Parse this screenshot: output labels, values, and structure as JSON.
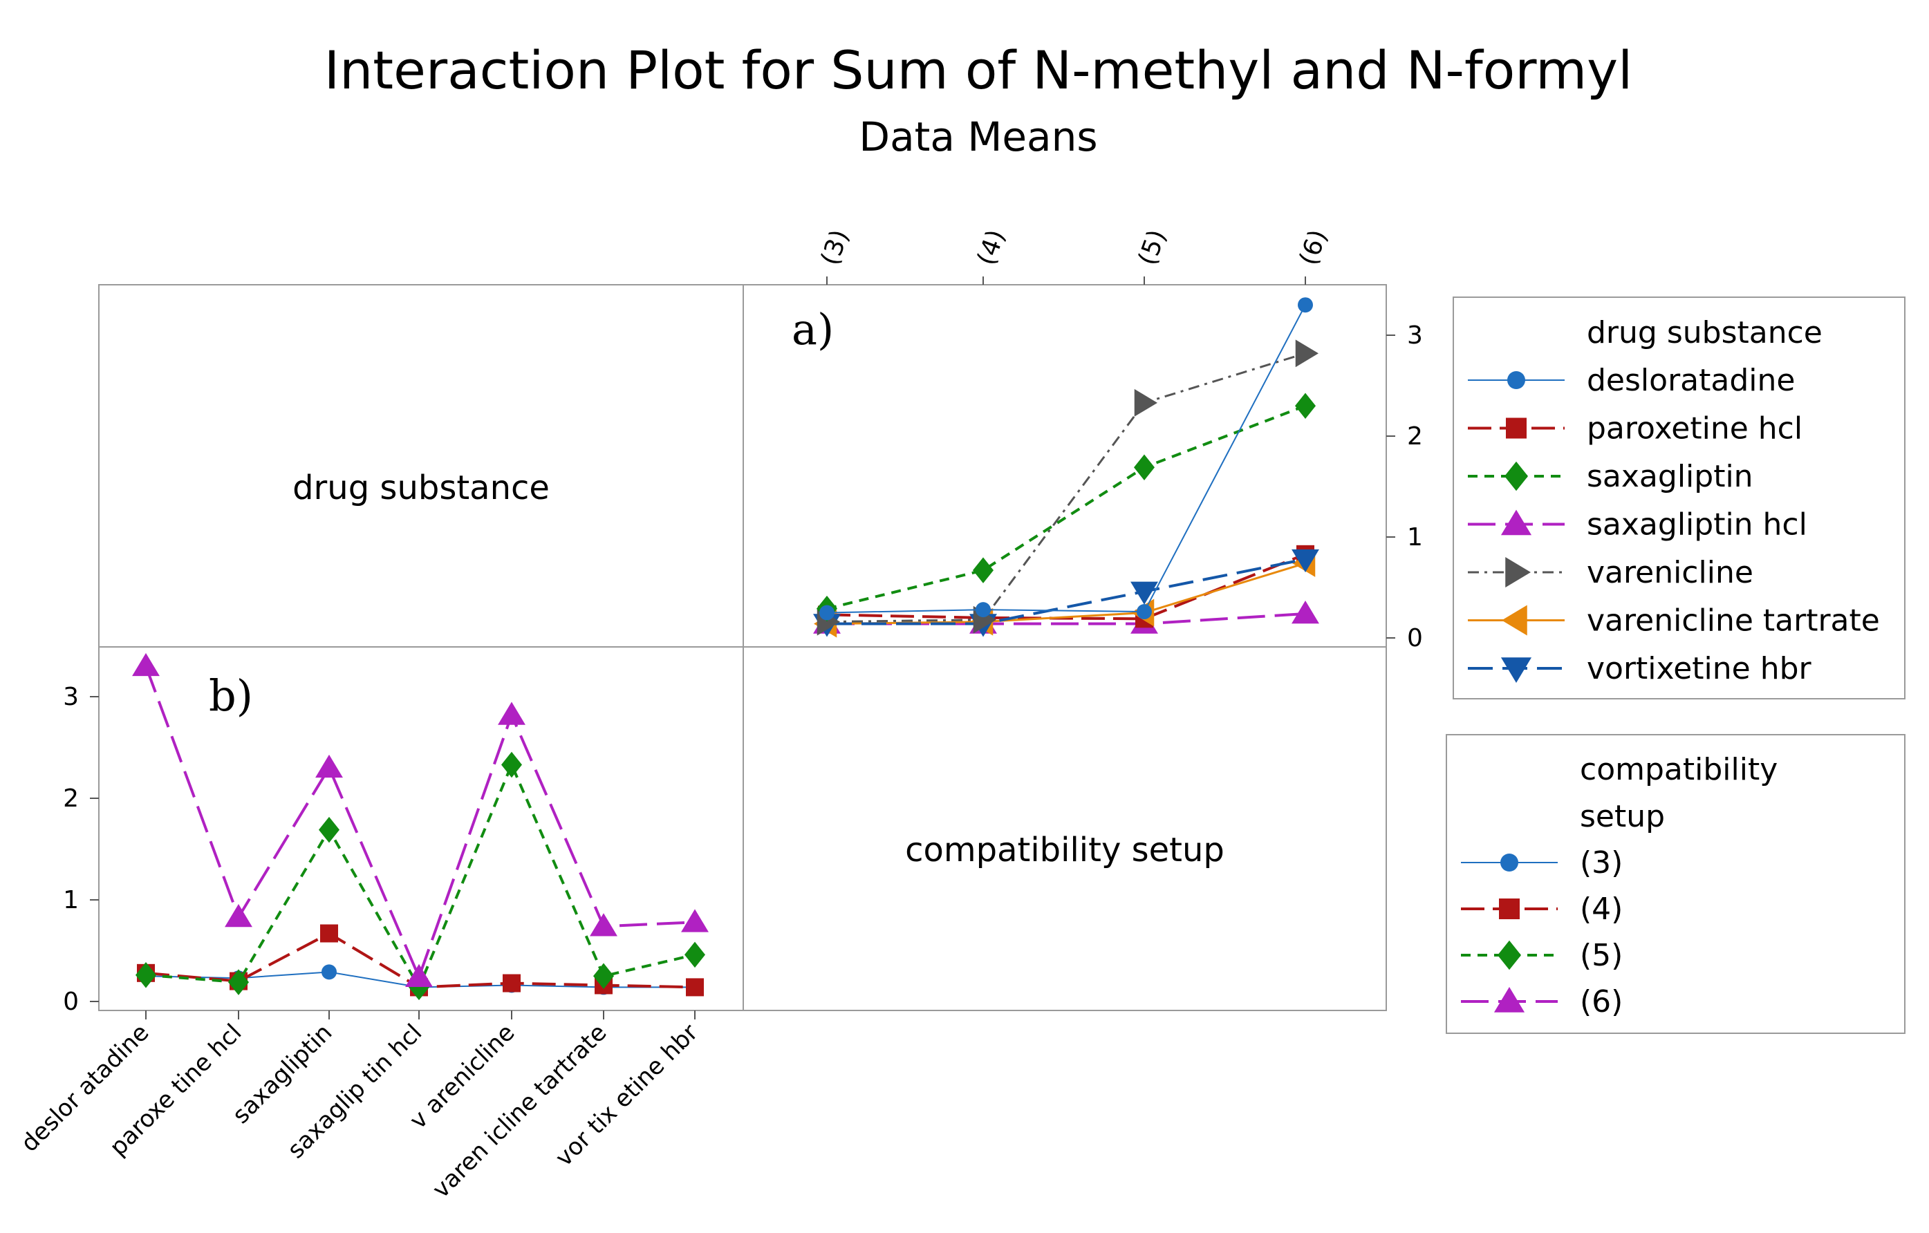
{
  "chart_data": {
    "type": "line",
    "title": "Interaction Plot for Sum of N-methyl and N-formyl",
    "subtitle": "Data Means",
    "panel_labels": {
      "a": "a)",
      "b": "b)",
      "drug_cell": "drug substance",
      "setup_cell": "compatibility setup"
    },
    "setups": [
      "(3)",
      "(4)",
      "(5)",
      "(6)"
    ],
    "drugs": [
      "desloratadine",
      "paroxetine hcl",
      "saxagliptin",
      "saxagliptin hcl",
      "varenicline",
      "varenicline tartrate",
      "vortixetine hbr"
    ],
    "drug_tick_labels": [
      "deslor atadine",
      "paroxe tine hcl",
      "saxagliptin",
      "saxaglip tin hcl",
      "v arenicline",
      "varen icline tartrate",
      "vor tix etine hbr"
    ],
    "ylim": [
      0,
      3.5
    ],
    "yticks": [
      0,
      1,
      2,
      3
    ],
    "means": {
      "desloratadine": [
        0.25,
        0.28,
        0.26,
        3.3
      ],
      "paroxetine hcl": [
        0.23,
        0.2,
        0.19,
        0.83
      ],
      "saxagliptin": [
        0.29,
        0.67,
        1.69,
        2.3
      ],
      "saxagliptin hcl": [
        0.14,
        0.14,
        0.14,
        0.24
      ],
      "varenicline": [
        0.16,
        0.18,
        2.33,
        2.82
      ],
      "varenicline tartrate": [
        0.14,
        0.16,
        0.25,
        0.74
      ],
      "vortixetine hbr": [
        0.14,
        0.14,
        0.46,
        0.78
      ]
    },
    "legend_drug": {
      "title": "drug substance",
      "entries": [
        "desloratadine",
        "paroxetine hcl",
        "saxagliptin",
        "saxagliptin hcl",
        "varenicline",
        "varenicline tartrate",
        "vortixetine hbr"
      ]
    },
    "legend_setup": {
      "title_line1": "compatibility",
      "title_line2": "setup",
      "entries": [
        "(3)",
        "(4)",
        "(5)",
        "(6)"
      ]
    }
  }
}
